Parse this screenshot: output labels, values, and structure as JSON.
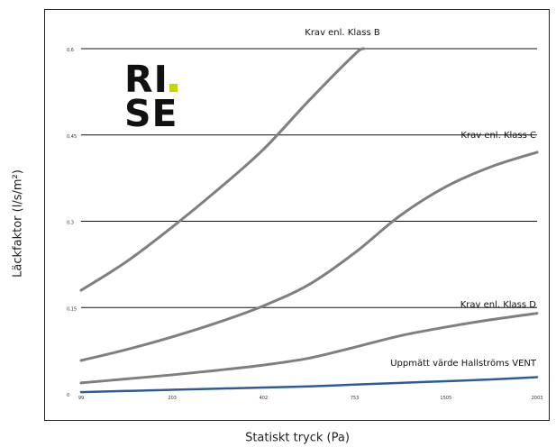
{
  "logo": {
    "line1": "RI",
    "line2": "SE",
    "dot_color": "#c4d600"
  },
  "chart_data": {
    "type": "line",
    "title": "",
    "xlabel": "Statiskt tryck (Pa)",
    "ylabel": "Läckfaktor (l/s/m²)",
    "ylim": [
      0,
      0.6
    ],
    "ytick_labels": [
      "0",
      "0,15",
      "0,3",
      "0,45",
      "0,6"
    ],
    "yticks": [
      0,
      0.15,
      0.3,
      0.45,
      0.6
    ],
    "xtick_labels": [
      "99",
      "203",
      "402",
      "753",
      "1505",
      "2003"
    ],
    "grid": "horizontal",
    "series": [
      {
        "name": "Krav enl. Klass B",
        "color": "#7f7f7f",
        "x": [
          0,
          0.5,
          1,
          1.5,
          2,
          2.5,
          3,
          3.1
        ],
        "y": [
          0.18,
          0.23,
          0.29,
          0.355,
          0.425,
          0.51,
          0.59,
          0.6
        ]
      },
      {
        "name": "Krav enl. Klass C",
        "color": "#7f7f7f",
        "x": [
          0,
          0.5,
          1,
          1.5,
          2,
          2.5,
          3,
          3.5,
          4,
          4.5,
          5
        ],
        "y": [
          0.058,
          0.077,
          0.099,
          0.124,
          0.153,
          0.19,
          0.245,
          0.31,
          0.36,
          0.395,
          0.42
        ]
      },
      {
        "name": "Krav enl. Klass D",
        "color": "#7f7f7f",
        "x": [
          0,
          0.5,
          1,
          1.5,
          2,
          2.5,
          3,
          3.5,
          4,
          4.5,
          5
        ],
        "y": [
          0.019,
          0.026,
          0.033,
          0.041,
          0.05,
          0.062,
          0.081,
          0.101,
          0.116,
          0.129,
          0.14
        ]
      },
      {
        "name": "Uppmätt värde Hallströms VENT",
        "color": "#2e5c99",
        "x": [
          0,
          0.5,
          1,
          1.5,
          2,
          2.5,
          3,
          3.5,
          4,
          4.5,
          5
        ],
        "y": [
          0.003,
          0.005,
          0.007,
          0.009,
          0.011,
          0.013,
          0.016,
          0.019,
          0.022,
          0.025,
          0.029
        ]
      }
    ]
  }
}
